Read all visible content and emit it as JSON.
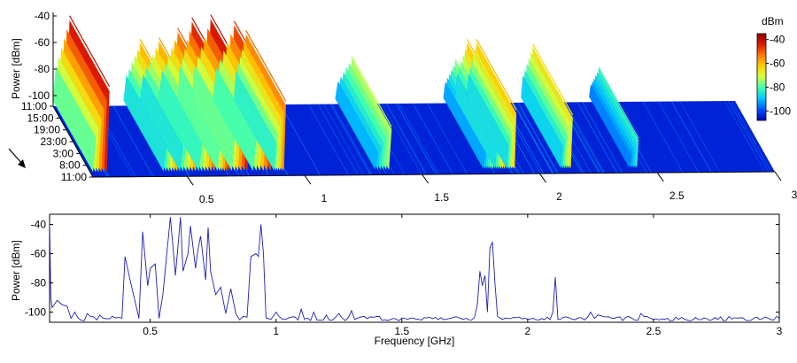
{
  "chart_data": [
    {
      "type": "heatmap",
      "view": "3d-waterfall",
      "ylabel": "Power [dBm]",
      "z_ticks": [
        -40,
        -60,
        -80,
        -100
      ],
      "z_range": [
        -108,
        -35
      ],
      "time_ticks": [
        "11:00",
        "15:00",
        "19:00",
        "23:00",
        "3:00",
        "8:00",
        "11:00"
      ],
      "x_ticks": [
        0.5,
        1,
        1.5,
        2,
        2.5,
        3
      ],
      "xlim": [
        0.1,
        3
      ],
      "colorbar": {
        "title": "dBm",
        "ticks": [
          -40,
          -60,
          -80,
          -100
        ],
        "colors": [
          "#0000b8",
          "#0050ff",
          "#00c8ff",
          "#40ffb0",
          "#d0ff40",
          "#ffd000",
          "#ff7a00",
          "#e01a00",
          "#900000"
        ]
      },
      "bands": [
        {
          "f1": 0.1,
          "f2": 0.17,
          "peak": -40
        },
        {
          "f1": 0.4,
          "f2": 0.47,
          "peak": -58
        },
        {
          "f1": 0.47,
          "f2": 0.55,
          "peak": -57
        },
        {
          "f1": 0.55,
          "f2": 0.63,
          "peak": -50
        },
        {
          "f1": 0.63,
          "f2": 0.69,
          "peak": -42
        },
        {
          "f1": 0.69,
          "f2": 0.77,
          "peak": -40
        },
        {
          "f1": 0.78,
          "f2": 0.87,
          "peak": -45
        },
        {
          "f1": 0.87,
          "f2": 0.92,
          "peak": -52
        },
        {
          "f1": 1.3,
          "f2": 1.37,
          "peak": -72
        },
        {
          "f1": 1.76,
          "f2": 1.81,
          "peak": -75
        },
        {
          "f1": 1.81,
          "f2": 1.86,
          "peak": -60
        },
        {
          "f1": 1.86,
          "f2": 1.9,
          "peak": -60
        },
        {
          "f1": 2.09,
          "f2": 2.14,
          "peak": -64
        },
        {
          "f1": 2.38,
          "f2": 2.42,
          "peak": -82
        }
      ]
    },
    {
      "type": "line",
      "ylabel": "Power [dBm]",
      "xlabel": "Frequency [GHz]",
      "xlim": [
        0.1,
        3
      ],
      "ylim": [
        -107,
        -33
      ],
      "y_ticks": [
        -40,
        -60,
        -80,
        -100
      ],
      "x_ticks": [
        0.5,
        1,
        1.5,
        2,
        2.5,
        3
      ],
      "color": "#1f1fb4",
      "noise_floor": -106,
      "series": [
        {
          "x": [
            0.1,
            0.105,
            0.11,
            0.13,
            0.15,
            0.17,
            0.2,
            0.25,
            0.3,
            0.35,
            0.4,
            0.42,
            0.44,
            0.47,
            0.49,
            0.5,
            0.52,
            0.55,
            0.57,
            0.58,
            0.6,
            0.62,
            0.63,
            0.65,
            0.66,
            0.68,
            0.69,
            0.7,
            0.72,
            0.73,
            0.74,
            0.76,
            0.78,
            0.8,
            0.82,
            0.84,
            0.87,
            0.9,
            0.92,
            0.93,
            0.94,
            0.95,
            0.96,
            0.98,
            1.0,
            1.05,
            1.1,
            1.15,
            1.2,
            1.25,
            1.3,
            1.35,
            1.4,
            1.5,
            1.6,
            1.7,
            1.8,
            1.81,
            1.82,
            1.83,
            1.84,
            1.85,
            1.86,
            1.87,
            1.88,
            1.9,
            2.0,
            2.1,
            2.11,
            2.12,
            2.13,
            2.2,
            2.25,
            2.28,
            2.3,
            2.4,
            2.45,
            2.5,
            2.6,
            2.7,
            2.8,
            2.9,
            3.0
          ],
          "y": [
            -38,
            -90,
            -97,
            -92,
            -95,
            -96,
            -100,
            -101,
            -102,
            -103,
            -62,
            -78,
            -93,
            -45,
            -82,
            -70,
            -67,
            -88,
            -53,
            -35,
            -75,
            -35,
            -72,
            -60,
            -41,
            -70,
            -57,
            -48,
            -78,
            -42,
            -72,
            -88,
            -83,
            -101,
            -84,
            -101,
            -103,
            -62,
            -60,
            -62,
            -40,
            -60,
            -104,
            -105,
            -100,
            -104,
            -98,
            -100,
            -102,
            -101,
            -99,
            -103,
            -103,
            -104,
            -104,
            -104,
            -95,
            -72,
            -82,
            -75,
            -100,
            -56,
            -52,
            -80,
            -103,
            -105,
            -105,
            -100,
            -76,
            -105,
            -105,
            -104,
            -100,
            -102,
            -103,
            -103,
            -101,
            -105,
            -105,
            -104,
            -103,
            -104,
            -104
          ]
        }
      ]
    }
  ]
}
